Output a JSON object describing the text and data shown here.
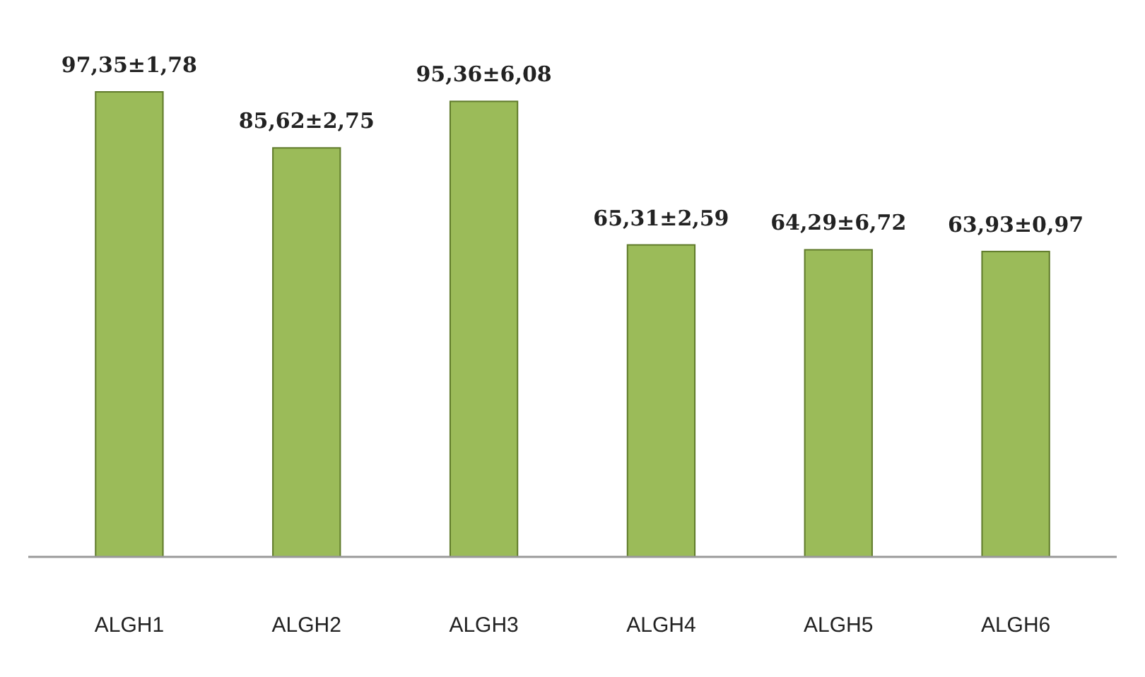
{
  "chart_data": {
    "type": "bar",
    "relative": false,
    "categories": [
      "ALGH1",
      "ALGH2",
      "ALGH3",
      "ALGH4",
      "ALGH5",
      "ALGH6"
    ],
    "values": [
      97.35,
      85.62,
      95.36,
      65.31,
      64.29,
      63.93
    ],
    "value_labels": [
      "97,35±1,78",
      "85,62±2,75",
      "95,36±6,08",
      "65,31±2,59",
      "64,29±6,72",
      "63,93±0,97"
    ],
    "color": "#9bbb59"
  }
}
